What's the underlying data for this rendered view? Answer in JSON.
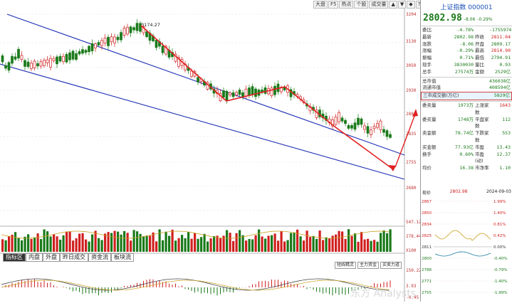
{
  "toolbar": [
    "大盘",
    "F5",
    "热点",
    "个股",
    "成交量",
    "▲",
    "▼",
    "◆",
    "?"
  ],
  "price_axis": [
    "3204",
    "3130",
    "3050",
    "2930",
    "2880",
    "2835",
    "2880",
    "2755",
    "2680"
  ],
  "peak_label": "3174.27",
  "volume_axis": [
    "547.12亿",
    "278.44亿",
    "X100"
  ],
  "macd_axis": [
    "150.22",
    "3.93",
    "-0.45"
  ],
  "bottom_tabs": [
    "指标区",
    "内盘",
    "外盘",
    "昨日成交",
    "资金流",
    "板块流"
  ],
  "ind_tabs": [
    "短线精灵",
    "主力资金",
    "买卖力道"
  ],
  "watermark": "东方 Analysts",
  "colors": {
    "up": "#d02020",
    "down": "#1a7a1a",
    "channel": "#1f2fb5",
    "arrow": "#e02020"
  },
  "panel": {
    "title": "上证指数 000001",
    "price": "2802.98",
    "change": "-8.06",
    "pct": "-0.29%",
    "rows": [
      {
        "l": "委比",
        "v": "-4.78%",
        "l2": "",
        "v2": "-1755974"
      },
      {
        "l": "最新",
        "v": "2802.98",
        "l2": "昨收",
        "v2": "2811.04"
      },
      {
        "l": "涨跌",
        "v": "-8.06",
        "l2": "开盘",
        "v2": "2809.17"
      },
      {
        "l": "涨幅",
        "v": "-0.29%",
        "l2": "最高",
        "v2": "2814.90"
      },
      {
        "l": "振幅",
        "v": "0.71%",
        "l2": "最低",
        "v2": "2794.91"
      },
      {
        "l": "现手",
        "v": "3830030",
        "l2": "量比",
        "v2": "0.93"
      },
      {
        "l": "总手",
        "v": "27574万",
        "l2": "金额",
        "v2": "2529亿"
      }
    ],
    "mid": [
      {
        "l": "总市值",
        "v": "436038亿"
      },
      {
        "l": "流通市值",
        "v": "408594亿"
      },
      {
        "l": "三市成交额(万亿)",
        "v": "5829亿"
      }
    ],
    "stats": [
      {
        "l": "委卖量",
        "v": "1973万",
        "l2": "上涨家数",
        "v2": "1643"
      },
      {
        "l": "委买量",
        "v": "1748万",
        "l2": "平盘家数",
        "v2": "112"
      },
      {
        "l": "卖金额",
        "v": "78.74亿",
        "l2": "下跌家数",
        "v2": "553"
      },
      {
        "l": "买金额",
        "v": "77.93亿",
        "l2": "市盈",
        "v2": "13.43"
      },
      {
        "l": "换手",
        "v": "0.60%",
        "l2": "市盈(动)",
        "v2": "12.37"
      },
      {
        "l": "均价",
        "v": "16.38",
        "l2": "市净率",
        "v2": "1.10"
      }
    ],
    "mini_head": {
      "left": "现价",
      "mid": "2802.98",
      "right": "2024-09-03"
    },
    "mini_axis_left": [
      "2867",
      "2850",
      "2834",
      "2825",
      "2811",
      "2800",
      "2788",
      "2771",
      "2755"
    ],
    "mini_axis_right": [
      "1.99%",
      "1.40%",
      "0.81%",
      "0.42%",
      "0.00%",
      "-0.40%",
      "-0.79%",
      "-1.40%",
      "-1.99%"
    ]
  }
}
